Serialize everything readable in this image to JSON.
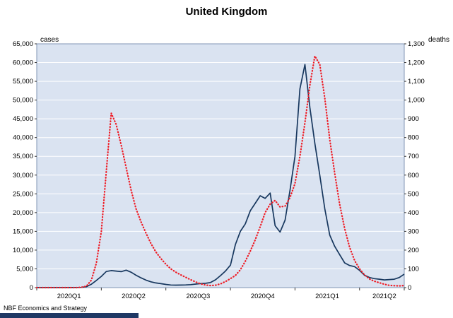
{
  "title": "United Kingdom",
  "footer": {
    "source": "NBF Economics and Strategy"
  },
  "colors": {
    "cases_line": "#17375e",
    "deaths_line": "#ee1c25",
    "plot_bg": "#dae3f1",
    "grid": "#ffffff",
    "plot_border": "#8096b4",
    "tick": "#333333",
    "text": "#000000",
    "footer_bar": "#1f3864"
  },
  "chart_data": {
    "type": "line",
    "title": "United Kingdom",
    "left_axis": {
      "unit_label": "cases",
      "min": 0,
      "max": 65000,
      "step": 5000
    },
    "right_axis": {
      "unit_label": "deaths",
      "min": 0,
      "max": 1300,
      "step": 100
    },
    "x_axis": {
      "unit": "weeks since 2020-01-06",
      "labels": [
        "2020Q1",
        "2020Q2",
        "2020Q3",
        "2020Q4",
        "2021Q1",
        "2021Q2"
      ],
      "boundary_weeks": [
        0,
        13,
        26,
        39,
        52,
        65
      ],
      "label_center_weeks": [
        6.5,
        19.5,
        32.5,
        45.5,
        58.5,
        70
      ],
      "total_weeks": 74
    },
    "series": [
      {
        "name": "cases",
        "axis": "left",
        "style": "solid",
        "color": "#17375e",
        "values": [
          0,
          0,
          0,
          0,
          0,
          0,
          0,
          10,
          30,
          60,
          250,
          900,
          1900,
          3000,
          4300,
          4550,
          4400,
          4250,
          4650,
          4100,
          3300,
          2600,
          2000,
          1550,
          1250,
          1050,
          850,
          700,
          660,
          680,
          720,
          800,
          950,
          1080,
          1150,
          1350,
          2100,
          3200,
          4400,
          6000,
          11500,
          15000,
          17000,
          20500,
          22500,
          24500,
          23800,
          25200,
          16500,
          14800,
          18000,
          26000,
          35000,
          53000,
          59500,
          48000,
          38500,
          30000,
          21000,
          14000,
          11000,
          8800,
          6600,
          5900,
          5600,
          4600,
          3300,
          2700,
          2400,
          2250,
          2050,
          2150,
          2250,
          2700,
          3600
        ]
      },
      {
        "name": "deaths",
        "axis": "right",
        "style": "dotted",
        "color": "#ee1c25",
        "values": [
          0,
          0,
          0,
          0,
          0,
          0,
          0,
          0,
          0,
          2,
          8,
          40,
          130,
          300,
          620,
          930,
          870,
          760,
          640,
          520,
          420,
          350,
          290,
          235,
          190,
          155,
          125,
          100,
          82,
          68,
          55,
          42,
          30,
          20,
          14,
          11,
          13,
          20,
          32,
          48,
          65,
          95,
          140,
          195,
          255,
          325,
          400,
          445,
          465,
          430,
          435,
          480,
          555,
          700,
          880,
          1080,
          1235,
          1190,
          1010,
          790,
          610,
          445,
          315,
          215,
          145,
          100,
          68,
          46,
          34,
          26,
          18,
          12,
          10,
          9,
          11
        ]
      }
    ]
  }
}
